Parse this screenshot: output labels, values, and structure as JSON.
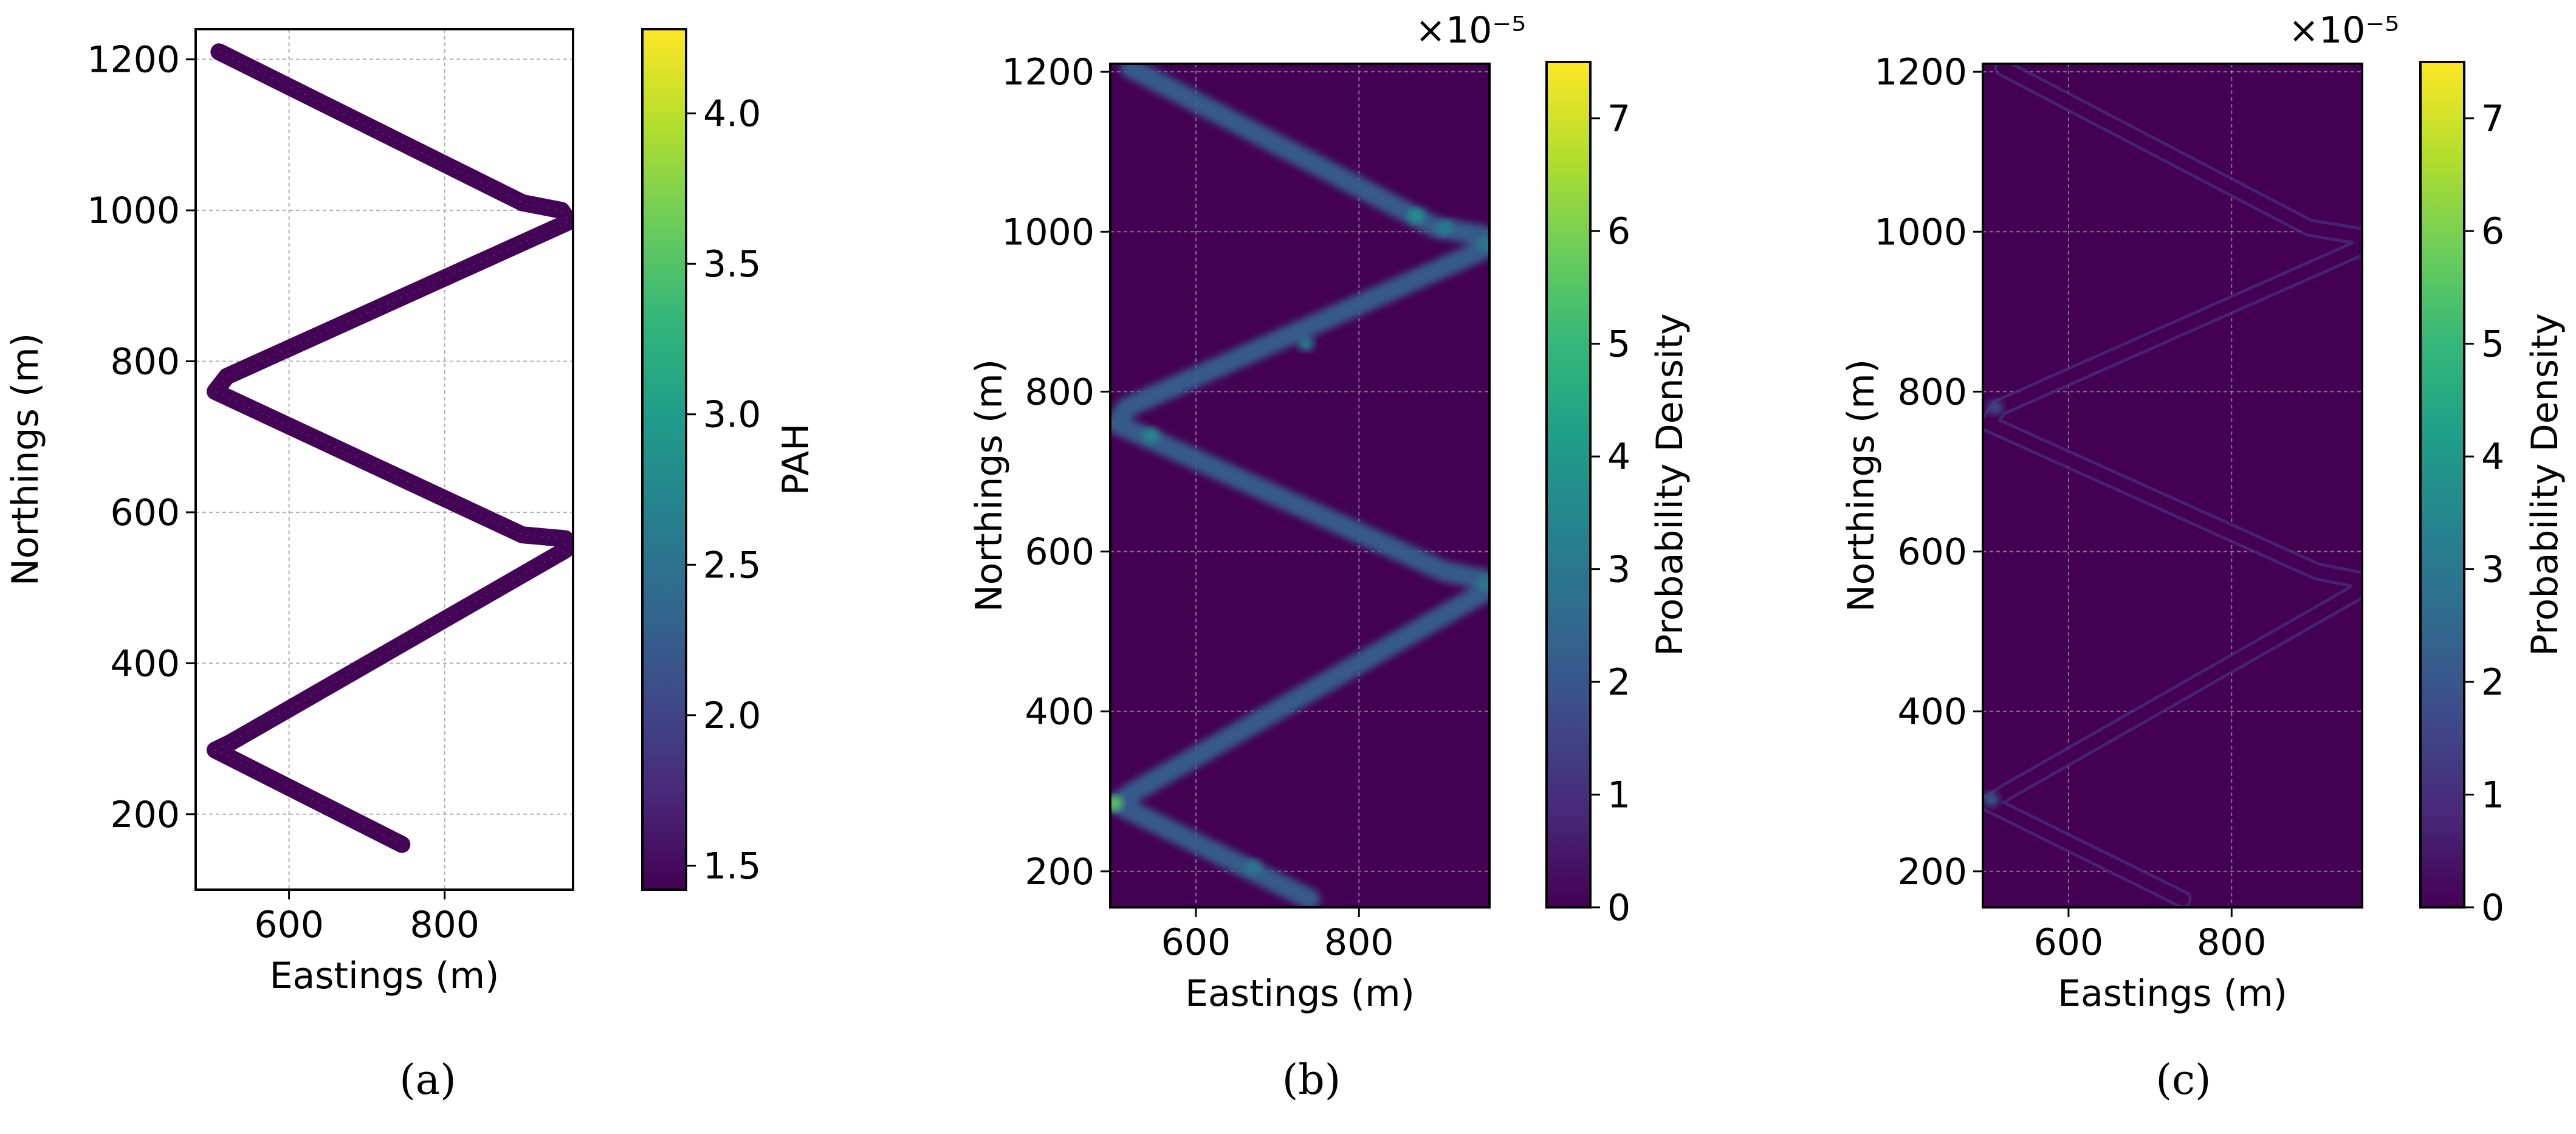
{
  "chart_data": [
    {
      "type": "scatter",
      "panel_caption": "(a)",
      "xlabel": "Eastings (m)",
      "ylabel": "Northings (m)",
      "xlim": [
        480,
        965
      ],
      "ylim": [
        100,
        1240
      ],
      "xticks": [
        600,
        800
      ],
      "yticks": [
        200,
        400,
        600,
        800,
        1000,
        1200
      ],
      "grid": true,
      "colorbar": {
        "label": "PAH",
        "range": [
          1.42,
          4.28
        ],
        "ticks": [
          1.5,
          2.0,
          2.5,
          3.0,
          3.5,
          4.0
        ],
        "colormap": "viridis"
      },
      "track": [
        [
          510,
          1210
        ],
        [
          900,
          1010
        ],
        [
          950,
          1000
        ],
        [
          960,
          985
        ],
        [
          520,
          780
        ],
        [
          505,
          760
        ],
        [
          900,
          570
        ],
        [
          955,
          565
        ],
        [
          955,
          550
        ],
        [
          525,
          295
        ],
        [
          505,
          285
        ],
        [
          745,
          160
        ]
      ],
      "point_value": 1.45
    },
    {
      "type": "heatmap",
      "panel_caption": "(b)",
      "xlabel": "Eastings (m)",
      "ylabel": "Northings (m)",
      "xlim": [
        495,
        960
      ],
      "ylim": [
        155,
        1210
      ],
      "xticks": [
        600,
        800
      ],
      "yticks": [
        200,
        400,
        600,
        800,
        1000,
        1200
      ],
      "grid": true,
      "colorbar": {
        "label": "Probability Density",
        "range": [
          0,
          7.5
        ],
        "ticks": [
          0,
          1,
          2,
          3,
          4,
          5,
          6,
          7
        ],
        "multiplier": "×10⁻⁵",
        "colormap": "viridis"
      },
      "track": [
        [
          520,
          1205
        ],
        [
          895,
          1005
        ],
        [
          955,
          995
        ],
        [
          958,
          980
        ],
        [
          515,
          780
        ],
        [
          502,
          760
        ],
        [
          905,
          575
        ],
        [
          955,
          565
        ],
        [
          955,
          550
        ],
        [
          525,
          300
        ],
        [
          502,
          285
        ],
        [
          740,
          165
        ]
      ],
      "background_value": 0.0,
      "track_value": 2.3,
      "hotspots": [
        [
          870,
          1020,
          3.8
        ],
        [
          905,
          1005,
          3.2
        ],
        [
          735,
          860,
          3.0
        ],
        [
          545,
          745,
          3.5
        ],
        [
          670,
          205,
          3.0
        ],
        [
          500,
          285,
          5.5
        ],
        [
          955,
          560,
          3.0
        ],
        [
          955,
          985,
          3.0
        ]
      ]
    },
    {
      "type": "heatmap",
      "panel_caption": "(c)",
      "xlabel": "Eastings (m)",
      "ylabel": "Northings (m)",
      "xlim": [
        495,
        960
      ],
      "ylim": [
        155,
        1210
      ],
      "xticks": [
        600,
        800
      ],
      "yticks": [
        200,
        400,
        600,
        800,
        1000,
        1200
      ],
      "grid": true,
      "colorbar": {
        "label": "Probability Density",
        "range": [
          0,
          7.5
        ],
        "ticks": [
          0,
          1,
          2,
          3,
          4,
          5,
          6,
          7
        ],
        "multiplier": "×10⁻⁵",
        "colormap": "viridis"
      },
      "track": [
        [
          520,
          1205
        ],
        [
          895,
          1005
        ],
        [
          955,
          995
        ],
        [
          958,
          980
        ],
        [
          515,
          780
        ],
        [
          502,
          760
        ],
        [
          905,
          575
        ],
        [
          955,
          565
        ],
        [
          955,
          550
        ],
        [
          525,
          300
        ],
        [
          502,
          285
        ],
        [
          740,
          165
        ]
      ],
      "background_value": 0.0,
      "track_value": 1.0,
      "hotspots": [
        [
          510,
          780,
          1.6
        ],
        [
          505,
          290,
          2.0
        ]
      ]
    }
  ]
}
